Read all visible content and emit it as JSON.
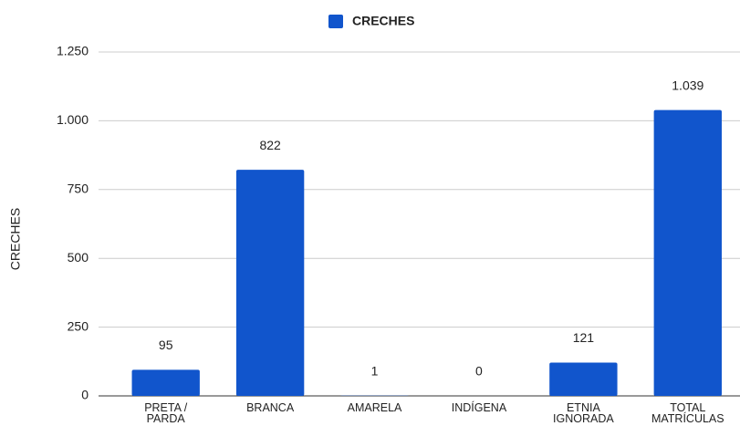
{
  "chart_data": {
    "type": "bar",
    "y_label": "CRECHES",
    "categories": [
      "PRETA / PARDA",
      "BRANCA",
      "AMARELA",
      "INDÍGENA",
      "ETNIA IGNORADA",
      "TOTAL MATRÍCULAS"
    ],
    "series": [
      {
        "name": "CRECHES",
        "color": "#1155cc",
        "values": [
          95,
          822,
          1,
          0,
          121,
          1039
        ],
        "value_labels": [
          "95",
          "822",
          "1",
          "0",
          "121",
          "1.039"
        ]
      }
    ],
    "ylim": [
      0,
      1250
    ],
    "yticks": [
      0,
      250,
      500,
      750,
      {
        "value": 1000,
        "label": "1.000"
      },
      {
        "value": 1250,
        "label": "1.250"
      }
    ],
    "grid": true,
    "legend": "top"
  }
}
